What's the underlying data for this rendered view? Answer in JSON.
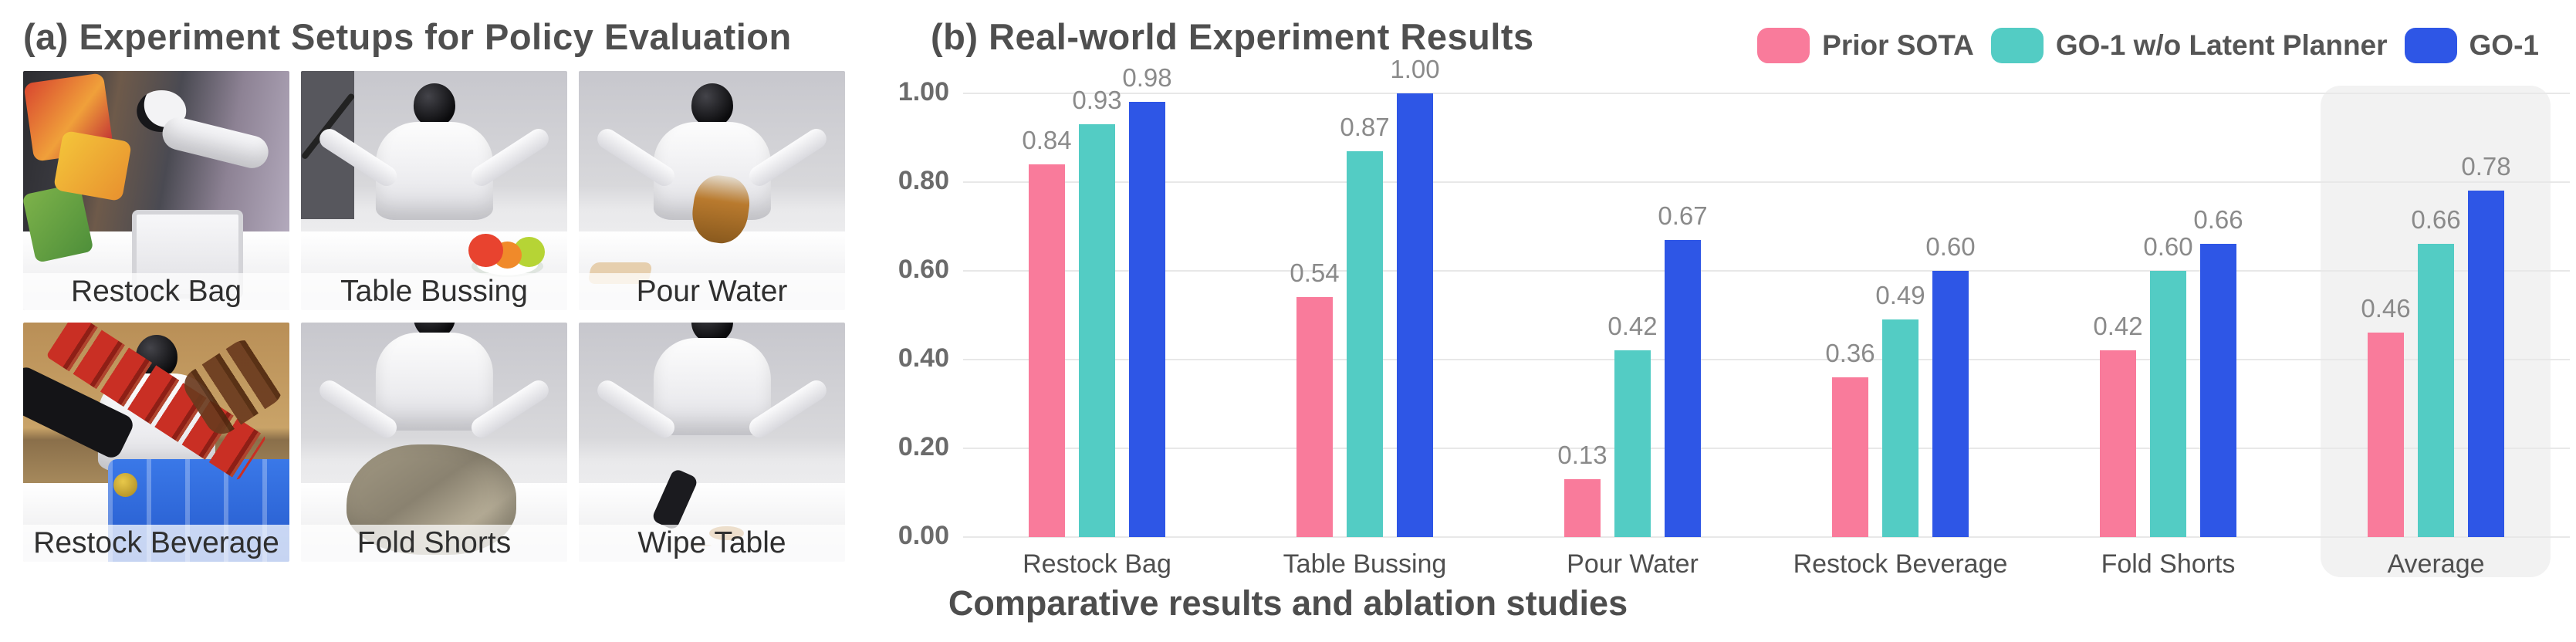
{
  "panel_a": {
    "title": "(a) Experiment Setups for Policy Evaluation",
    "setups": [
      {
        "label": "Restock Bag",
        "scene": "restock-bag"
      },
      {
        "label": "Table Bussing",
        "scene": "table-bussing"
      },
      {
        "label": "Pour Water",
        "scene": "pour-water"
      },
      {
        "label": "Restock Beverage",
        "scene": "restock-beverage"
      },
      {
        "label": "Fold Shorts",
        "scene": "fold-shorts"
      },
      {
        "label": "Wipe Table",
        "scene": "wipe-table"
      }
    ]
  },
  "panel_b": {
    "title": "(b) Real-world Experiment Results",
    "caption": "Comparative results and ablation studies"
  },
  "chart_data": {
    "type": "bar",
    "title": "(b) Real-world Experiment Results",
    "categories": [
      "Restock Bag",
      "Table Bussing",
      "Pour Water",
      "Restock Beverage",
      "Fold Shorts",
      "Average"
    ],
    "series": [
      {
        "name": "Prior SOTA",
        "color": "#F97B9B",
        "values": [
          0.84,
          0.54,
          0.13,
          0.36,
          0.42,
          0.46
        ]
      },
      {
        "name": "GO-1 w/o Latent Planner",
        "color": "#53CCC4",
        "values": [
          0.93,
          0.87,
          0.42,
          0.49,
          0.6,
          0.66
        ]
      },
      {
        "name": "GO-1",
        "color": "#2E56E6",
        "values": [
          0.98,
          1.0,
          0.67,
          0.6,
          0.66,
          0.78
        ]
      }
    ],
    "xlabel": "",
    "ylabel": "",
    "ylim": [
      0,
      1
    ],
    "yticks": [
      "0.00",
      "0.20",
      "0.40",
      "0.60",
      "0.80",
      "1.00"
    ],
    "grid": "horizontal",
    "legend_position": "top-right",
    "highlighted_category": "Average",
    "highlight_color": "#f2f2f2",
    "value_labels": "2 decimal places above each bar"
  }
}
